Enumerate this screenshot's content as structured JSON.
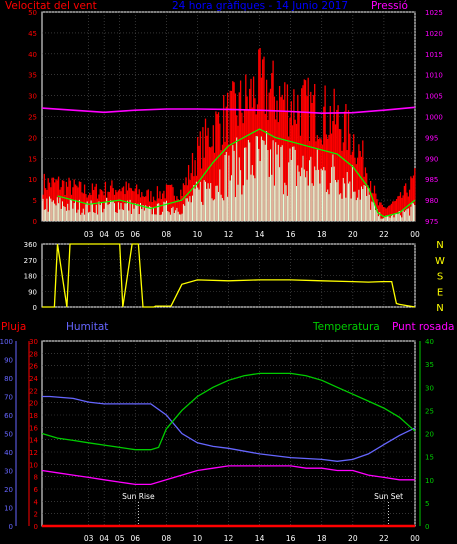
{
  "chart_data": [
    {
      "type": "line",
      "title": "24 hora gràfiques - 14 Junio 2017",
      "left_axis_label": "Velocitat del vent",
      "right_axis_label": "Pressió",
      "x_ticks": [
        "03",
        "04",
        "05",
        "06",
        "08",
        "10",
        "12",
        "14",
        "16",
        "18",
        "20",
        "22",
        "00"
      ],
      "ylim_left": [
        0,
        50
      ],
      "y_ticks_left": [
        "0",
        "5",
        "10",
        "15",
        "20",
        "25",
        "30",
        "35",
        "40",
        "45",
        "50"
      ],
      "ylim_right": [
        975,
        1025
      ],
      "y_ticks_right": [
        "975",
        "980",
        "985",
        "990",
        "995",
        "1000",
        "1005",
        "1010",
        "1015",
        "1020",
        "1025"
      ],
      "colors": {
        "gust": "#ff0000",
        "average": "#00ff00",
        "speed": "#ddffdd",
        "pressure": "#ff00ff"
      },
      "series": [
        {
          "name": "gust",
          "x": [
            1,
            3,
            5,
            7,
            8,
            9,
            10,
            11,
            12,
            13,
            14,
            15,
            16,
            17,
            18,
            19,
            20,
            21,
            21.6,
            22,
            23,
            24
          ],
          "values": [
            9,
            7,
            8,
            6,
            7,
            7,
            16,
            22,
            25,
            28,
            32,
            30,
            28,
            27,
            26,
            24,
            20,
            12,
            4,
            3,
            5,
            10
          ]
        },
        {
          "name": "average",
          "x": [
            1,
            3,
            5,
            7,
            8,
            9,
            10,
            11,
            12,
            13,
            14,
            15,
            16,
            17,
            18,
            19,
            20,
            21,
            21.6,
            22,
            23,
            24
          ],
          "values": [
            6,
            4,
            5,
            3,
            4,
            5,
            9,
            14,
            18,
            20,
            22,
            20,
            19,
            18,
            17,
            16,
            13,
            8,
            2,
            1,
            2,
            5
          ]
        },
        {
          "name": "speed",
          "x": [
            1,
            3,
            5,
            7,
            8,
            9,
            10,
            11,
            12,
            13,
            14,
            15,
            16,
            17,
            18,
            19,
            20,
            21,
            21.6,
            22,
            23,
            24
          ],
          "values": [
            5,
            4,
            5,
            3,
            4,
            4,
            8,
            12,
            15,
            17,
            18,
            17,
            16,
            15,
            14,
            14,
            12,
            7,
            2,
            1,
            2,
            4
          ]
        },
        {
          "name": "pressure",
          "x": [
            0,
            2,
            4,
            6,
            8,
            10,
            12,
            14,
            16,
            18,
            20,
            22,
            24
          ],
          "values": [
            1002,
            1001.5,
            1001,
            1001.5,
            1001.8,
            1001.8,
            1001.7,
            1001.5,
            1001.2,
            1000.8,
            1000.9,
            1001.5,
            1002.2
          ]
        }
      ]
    },
    {
      "type": "line",
      "x_ticks": [
        "03",
        "04",
        "05",
        "06",
        "08",
        "10",
        "12",
        "14",
        "16",
        "18",
        "20",
        "22",
        "00"
      ],
      "ylim": [
        0,
        360
      ],
      "y_ticks": [
        "0",
        "90",
        "180",
        "270",
        "360"
      ],
      "right_labels": [
        "N",
        "W",
        "S",
        "E",
        "N"
      ],
      "color": "#ffff00",
      "series": [
        {
          "name": "direction",
          "x": [
            0,
            0.8,
            1,
            1.6,
            1.8,
            2.2,
            2.5,
            5,
            5.2,
            5.8,
            6,
            6.2,
            6.5,
            7.2,
            7.3,
            8.3,
            9,
            10,
            12,
            14,
            16,
            18,
            20,
            21,
            22,
            22.5,
            22.8,
            23,
            24
          ],
          "values": [
            0,
            0,
            360,
            0,
            360,
            360,
            360,
            360,
            0,
            360,
            360,
            360,
            0,
            0,
            5,
            5,
            130,
            155,
            150,
            155,
            155,
            150,
            145,
            142,
            145,
            145,
            20,
            15,
            0
          ]
        }
      ]
    },
    {
      "type": "line",
      "labels": {
        "rain": "Pluja",
        "humidity": "Humitat",
        "temperature": "Temperatura",
        "dewpoint": "Punt rosada"
      },
      "x_ticks": [
        "03",
        "04",
        "05",
        "06",
        "08",
        "10",
        "12",
        "14",
        "16",
        "18",
        "20",
        "22",
        "00"
      ],
      "ylim_humidity": [
        0,
        100
      ],
      "y_ticks_humidity": [
        "0",
        "10",
        "20",
        "30",
        "40",
        "50",
        "60",
        "70",
        "80",
        "90",
        "100"
      ],
      "ylim_rain": [
        0,
        30
      ],
      "y_ticks_rain": [
        "0",
        "2",
        "4",
        "6",
        "8",
        "10",
        "12",
        "14",
        "16",
        "18",
        "20",
        "22",
        "24",
        "26",
        "28",
        "30"
      ],
      "ylim_temperature": [
        0,
        40
      ],
      "y_ticks_temperature": [
        "0",
        "5",
        "10",
        "15",
        "20",
        "25",
        "30",
        "35",
        "40"
      ],
      "annotations": [
        "Sun Rise",
        "Sun Set"
      ],
      "colors": {
        "rain": "#ff0000",
        "humidity": "#6666ff",
        "temperature": "#00cc00",
        "dewpoint": "#ff00ff"
      },
      "series": [
        {
          "name": "humidity",
          "x": [
            0,
            0.5,
            2,
            3,
            4,
            5,
            6,
            7,
            8,
            9,
            10,
            11,
            12,
            14,
            16,
            18,
            19,
            20,
            21,
            22,
            23,
            24
          ],
          "values": [
            70,
            70,
            69,
            67,
            66,
            66,
            66,
            66,
            60,
            50,
            45,
            43,
            42,
            39,
            37,
            36,
            35,
            36,
            39,
            44,
            49,
            53
          ]
        },
        {
          "name": "temperature",
          "x": [
            0,
            1,
            2,
            3,
            4,
            5,
            6,
            7,
            7.5,
            8,
            9,
            10,
            11,
            12,
            13,
            14,
            15,
            16,
            17,
            18,
            19,
            20,
            21,
            22,
            23,
            24
          ],
          "values": [
            20,
            19,
            18.5,
            18,
            17.5,
            17,
            16.5,
            16.5,
            17,
            21,
            25,
            28,
            30,
            31.5,
            32.5,
            33,
            33,
            33,
            32.5,
            31.5,
            30,
            28.5,
            27,
            25.5,
            23.5,
            20.5
          ]
        },
        {
          "name": "dewpoint",
          "x": [
            0,
            1,
            2,
            3,
            4,
            5,
            6,
            7,
            8,
            9,
            10,
            11,
            12,
            13,
            14,
            15,
            16,
            17,
            18,
            19,
            20,
            21,
            22,
            23,
            24
          ],
          "values": [
            12,
            11.5,
            11,
            10.5,
            10,
            9.5,
            9,
            9,
            10,
            11,
            12,
            12.5,
            13,
            13,
            13,
            13,
            13,
            12.5,
            12.5,
            12,
            12,
            11,
            10.5,
            10,
            10
          ]
        },
        {
          "name": "rain",
          "x": [
            0,
            24
          ],
          "values": [
            0,
            0
          ]
        }
      ]
    }
  ]
}
